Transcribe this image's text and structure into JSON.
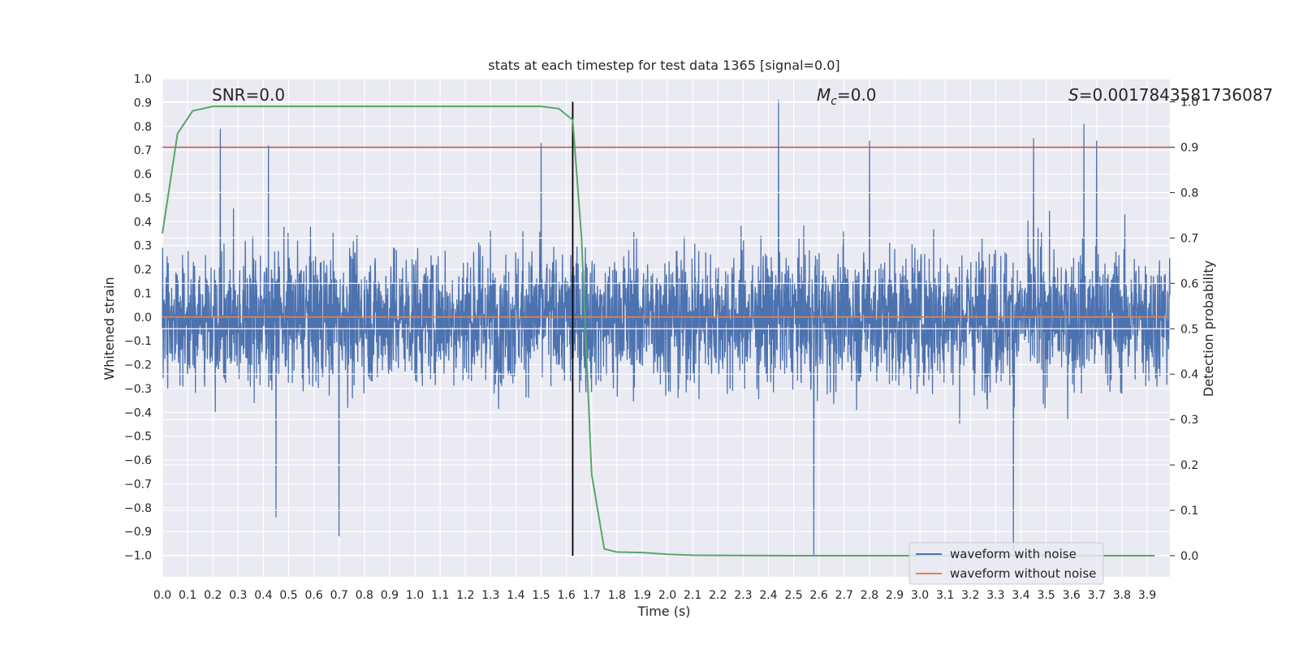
{
  "chart_data": {
    "type": "line",
    "title": "stats at each timestep for test data 1365 [signal=0.0]",
    "xlabel": "Time (s)",
    "ylabel": "Whitened strain",
    "y2label": "Detection probability",
    "xlim": [
      0.0,
      3.99
    ],
    "ylim": [
      -1.09,
      1.0
    ],
    "y2lim": [
      -0.05,
      1.0
    ],
    "xticks": [
      "0.0",
      "0.1",
      "0.2",
      "0.3",
      "0.4",
      "0.5",
      "0.6",
      "0.7",
      "0.8",
      "0.9",
      "1.0",
      "1.1",
      "1.2",
      "1.3",
      "1.4",
      "1.5",
      "1.6",
      "1.7",
      "1.8",
      "1.9",
      "2.0",
      "2.1",
      "2.2",
      "2.3",
      "2.4",
      "2.5",
      "2.6",
      "2.7",
      "2.8",
      "2.9",
      "3.0",
      "3.1",
      "3.2",
      "3.3",
      "3.4",
      "3.5",
      "3.6",
      "3.7",
      "3.8",
      "3.9"
    ],
    "yticks": [
      "1.0",
      "0.9",
      "0.8",
      "0.7",
      "0.6",
      "0.5",
      "0.4",
      "0.3",
      "0.2",
      "0.1",
      "0.0",
      "−0.1",
      "−0.2",
      "−0.3",
      "−0.4",
      "−0.5",
      "−0.6",
      "−0.7",
      "−0.8",
      "−0.9",
      "−1.0"
    ],
    "y2ticks": [
      "1.0",
      "0.9",
      "0.8",
      "0.7",
      "0.6",
      "0.5",
      "0.4",
      "0.3",
      "0.2",
      "0.1",
      "0.0"
    ],
    "annotations": {
      "snr": "SNR=0.0",
      "mc_symbol": "M",
      "mc_sub": "c",
      "mc_value": "=0.0",
      "s_symbol": "S",
      "s_value": "=0.0017843581736087"
    },
    "threshold": {
      "value": 0.9,
      "axis": "y2",
      "color": "#c44e52"
    },
    "marker_time": 1.625,
    "series": [
      {
        "name": "waveform with noise",
        "color": "#4c72b0",
        "axis": "y",
        "summary": "stationary noise spanning roughly -1.0 to 0.91",
        "peaks": [
          [
            0.23,
            0.79
          ],
          [
            0.42,
            0.72
          ],
          [
            0.45,
            -0.84
          ],
          [
            0.7,
            -0.92
          ],
          [
            1.5,
            0.73
          ],
          [
            2.44,
            0.91
          ],
          [
            2.58,
            -1.0
          ],
          [
            2.8,
            0.74
          ],
          [
            3.37,
            -0.98
          ],
          [
            3.45,
            0.75
          ],
          [
            3.65,
            0.81
          ],
          [
            3.7,
            0.74
          ]
        ]
      },
      {
        "name": "waveform without noise",
        "color": "#dd8452",
        "axis": "y",
        "values": [
          [
            0.0,
            0.0
          ],
          [
            3.99,
            0.0
          ]
        ]
      },
      {
        "name": "detection probability",
        "color": "#55a868",
        "axis": "y2",
        "values": [
          [
            0.0,
            0.71
          ],
          [
            0.06,
            0.93
          ],
          [
            0.12,
            0.98
          ],
          [
            0.2,
            0.99
          ],
          [
            0.3,
            0.99
          ],
          [
            0.6,
            0.99
          ],
          [
            1.0,
            0.99
          ],
          [
            1.5,
            0.99
          ],
          [
            1.57,
            0.985
          ],
          [
            1.625,
            0.96
          ],
          [
            1.66,
            0.7
          ],
          [
            1.7,
            0.18
          ],
          [
            1.75,
            0.015
          ],
          [
            1.8,
            0.008
          ],
          [
            1.9,
            0.007
          ],
          [
            2.0,
            0.003
          ],
          [
            2.1,
            0.001
          ],
          [
            2.5,
            0.0
          ],
          [
            3.0,
            0.0
          ],
          [
            3.5,
            0.0
          ],
          [
            3.93,
            0.0
          ]
        ]
      }
    ],
    "legend": {
      "placement": "lower-right",
      "items": [
        "waveform with noise",
        "waveform without noise"
      ]
    }
  }
}
